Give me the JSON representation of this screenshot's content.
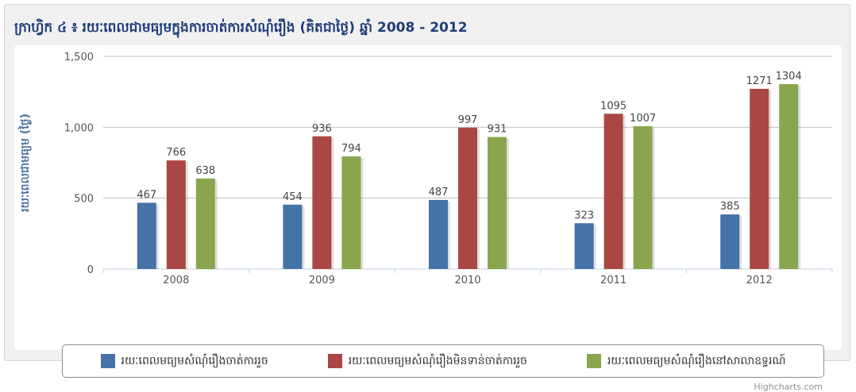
{
  "chart_title": "ក្រាហ្វិក ៤ ៖ រយៈពេលជាមធ្យមក្នុងការចាត់ការសំណុំរឿង (គិតជាថ្ងៃ) ឆ្នាំ 2008 - 2012",
  "credits": "Highcharts.com",
  "colors": {
    "series1": "#4572a7",
    "series2": "#aa4643",
    "series3": "#89a54e",
    "title": "#1f3d7a",
    "axis_title": "#4d759e"
  },
  "chart_data": {
    "type": "bar",
    "title": "ក្រាហ្វិក ៤ ៖ រយៈពេលជាមធ្យមក្នុងការចាត់ការសំណុំរឿង (គិតជាថ្ងៃ) ឆ្នាំ 2008 - 2012",
    "xlabel": "",
    "ylabel": "រយៈពេលជាមធ្យម (ថ្ងៃ)",
    "ylim": [
      0,
      1500
    ],
    "yticks": [
      0,
      500,
      1000,
      1500
    ],
    "ytick_labels": [
      "0",
      "500",
      "1,000",
      "1,500"
    ],
    "grid": true,
    "legend_position": "bottom",
    "categories": [
      "2008",
      "2009",
      "2010",
      "2011",
      "2012"
    ],
    "series": [
      {
        "name": "រយៈពេលមធ្យមសំណុំរឿងចាត់ការរួច",
        "values": [
          467,
          454,
          487,
          323,
          385
        ]
      },
      {
        "name": "រយៈពេលមធ្យមសំណុំរឿងមិនទាន់ចាត់ការរួច",
        "values": [
          766,
          936,
          997,
          1095,
          1271
        ]
      },
      {
        "name": "រយៈពេលមធ្យមសំណុំរឿងនៅសាលាឧទ្ធរណ៍",
        "values": [
          638,
          794,
          931,
          1007,
          1304
        ]
      }
    ]
  }
}
